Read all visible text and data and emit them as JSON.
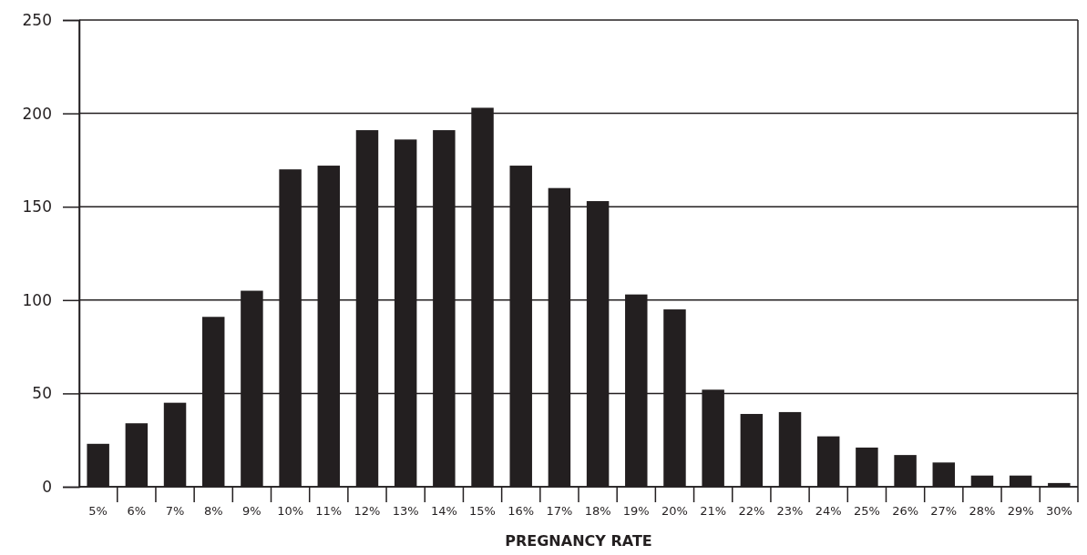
{
  "chart_data": {
    "type": "bar",
    "xlabel": "PREGNANCY RATE",
    "categories": [
      "5%",
      "6%",
      "7%",
      "8%",
      "9%",
      "10%",
      "11%",
      "12%",
      "13%",
      "14%",
      "15%",
      "16%",
      "17%",
      "18%",
      "19%",
      "20%",
      "21%",
      "22%",
      "23%",
      "24%",
      "25%",
      "26%",
      "27%",
      "28%",
      "29%",
      "30%"
    ],
    "values": [
      23,
      34,
      45,
      91,
      105,
      170,
      172,
      191,
      186,
      191,
      203,
      172,
      160,
      153,
      103,
      95,
      52,
      39,
      40,
      27,
      21,
      17,
      13,
      6,
      6,
      2
    ],
    "color": "#231f20",
    "ylim": [
      0,
      250
    ],
    "yticks": [
      0,
      50,
      100,
      150,
      200,
      250
    ],
    "grid": "y"
  }
}
